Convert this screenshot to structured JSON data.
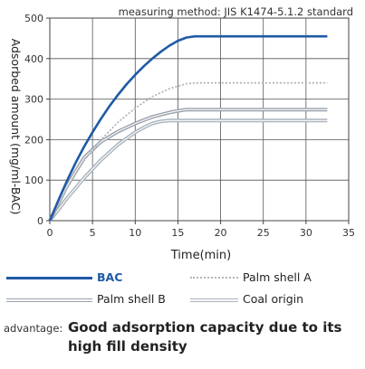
{
  "chart_data": {
    "type": "line",
    "annotation": "measuring method: JIS K1474-5.1.2 standard",
    "xlabel": "Time(min)",
    "ylabel": "Adsorbed amount (mg/ml-BAC)",
    "xlim": [
      0,
      35
    ],
    "ylim": [
      0,
      500
    ],
    "xticks": [
      0,
      5,
      10,
      15,
      20,
      25,
      30,
      35
    ],
    "yticks": [
      0,
      100,
      200,
      300,
      400,
      500
    ],
    "grid": true,
    "legend_position": "bottom",
    "series": [
      {
        "name": "BAC",
        "color": "#1f5aa6",
        "style": "solid-thick",
        "x": [
          0,
          1,
          2,
          3,
          4,
          5,
          6,
          7,
          8,
          9,
          10,
          11,
          12,
          13,
          14,
          15,
          16,
          17,
          20,
          25,
          30,
          32.5
        ],
        "y": [
          0,
          50,
          98,
          142,
          182,
          218,
          252,
          283,
          311,
          337,
          360,
          381,
          400,
          417,
          432,
          444,
          452,
          455,
          455,
          455,
          455,
          455
        ]
      },
      {
        "name": "Palm shell A",
        "color": "#b4b4bc",
        "style": "dotted",
        "x": [
          0,
          2,
          4,
          6,
          8,
          10,
          12,
          14,
          16,
          17,
          20,
          25,
          30,
          32.5
        ],
        "y": [
          0,
          80,
          148,
          200,
          243,
          278,
          306,
          326,
          338,
          340,
          340,
          340,
          340,
          340
        ]
      },
      {
        "name": "Palm shell B",
        "color": "#9aa2ad",
        "style": "double",
        "x": [
          0,
          2,
          4,
          6,
          8,
          10,
          12,
          14,
          15,
          16,
          20,
          25,
          30,
          32.5
        ],
        "y": [
          0,
          85,
          155,
          195,
          220,
          240,
          256,
          267,
          271,
          274,
          274,
          274,
          274,
          274
        ]
      },
      {
        "name": "Coal origin",
        "color": "#a9b3bd",
        "style": "double",
        "x": [
          0,
          2,
          4,
          6,
          8,
          10,
          11,
          12,
          13,
          14,
          20,
          25,
          30,
          32.5
        ],
        "y": [
          0,
          55,
          105,
          150,
          188,
          218,
          230,
          240,
          245,
          247,
          247,
          247,
          247,
          247
        ]
      }
    ]
  },
  "footer": {
    "prefix": "advantage:",
    "text": "Good adsorption capacity due to its high fill density"
  }
}
